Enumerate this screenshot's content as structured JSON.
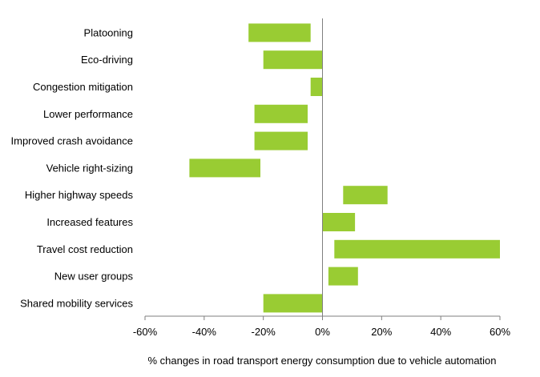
{
  "chart_data": {
    "type": "bar",
    "orientation": "horizontal",
    "style": "floating-range",
    "title": "",
    "xlabel": "% changes in road transport energy consumption due to vehicle automation",
    "ylabel": "",
    "xlim": [
      -60,
      60
    ],
    "x_ticks": [
      -60,
      -40,
      -20,
      0,
      20,
      40,
      60
    ],
    "tick_suffix": "%",
    "bar_color": "#99cc33",
    "axis_color": "#7f7f7f",
    "categories": [
      "Platooning",
      "Eco-driving",
      "Congestion mitigation",
      "Lower performance",
      "Improved crash avoidance",
      "Vehicle right-sizing",
      "Higher highway speeds",
      "Increased features",
      "Travel cost reduction",
      "New user groups",
      "Shared mobility services"
    ],
    "ranges": [
      [
        -25,
        -4
      ],
      [
        -20,
        0
      ],
      [
        -4,
        0
      ],
      [
        -23,
        -5
      ],
      [
        -23,
        -5
      ],
      [
        -45,
        -21
      ],
      [
        7,
        22
      ],
      [
        0,
        11
      ],
      [
        4,
        60
      ],
      [
        2,
        12
      ],
      [
        -20,
        0
      ]
    ]
  }
}
